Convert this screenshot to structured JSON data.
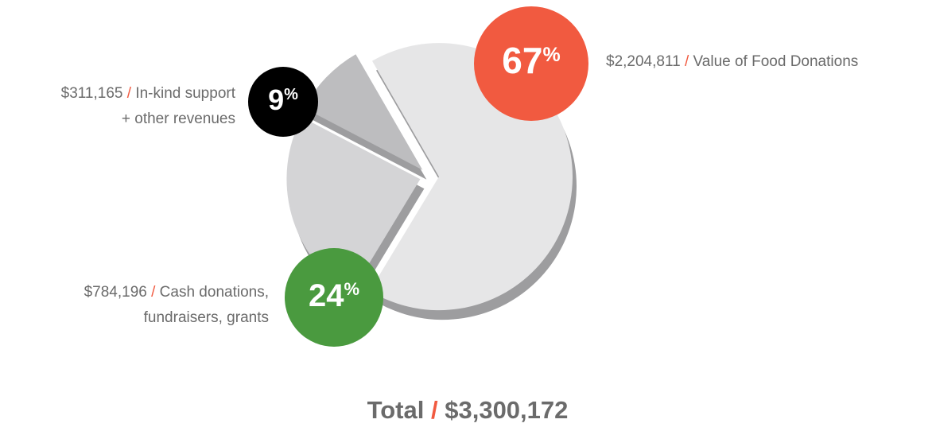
{
  "chart_data": {
    "type": "pie",
    "categories": [
      [
        "Value of Food Donations"
      ],
      [
        "Cash donations,",
        "fundraisers, grants"
      ],
      [
        "In-kind support",
        "+ other revenues"
      ]
    ],
    "values": [
      67,
      24,
      9
    ],
    "value_labels": [
      "67%",
      "24%",
      "9%"
    ],
    "amounts": [
      2204811,
      784196,
      311165
    ],
    "amount_labels": [
      "$2,204,811",
      "$784,196",
      "$311,165"
    ],
    "separator": "/",
    "slice_colors": [
      "#e6e6e7",
      "#d4d4d6",
      "#bdbdbf"
    ],
    "badge_colors": [
      "#f15a40",
      "#4a9a3f",
      "#000000"
    ],
    "total_title": "Total",
    "total": 3300172,
    "total_label": "$3,300,172"
  }
}
